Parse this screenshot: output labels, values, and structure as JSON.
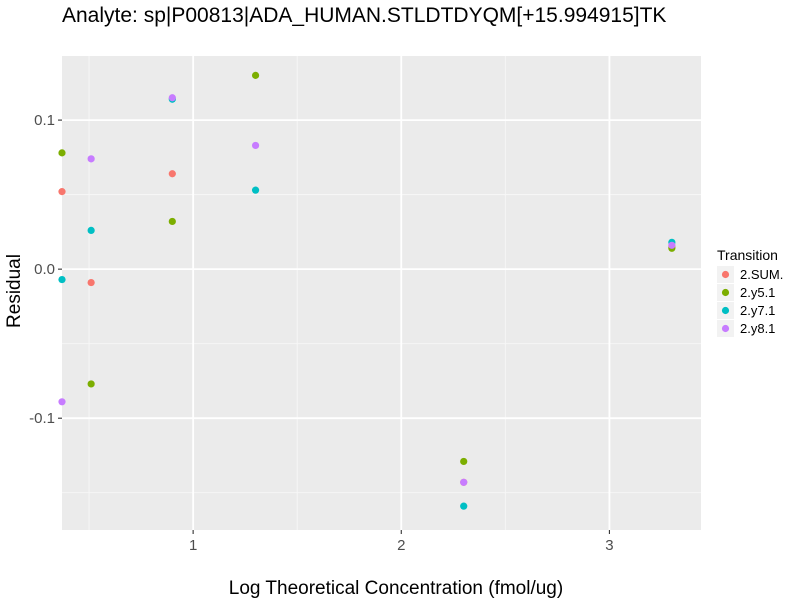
{
  "chart_data": {
    "type": "scatter",
    "title": "Analyte: sp|P00813|ADA_HUMAN.STLDTDYQM[+15.994915]TK",
    "xlabel": "Log Theoretical Concentration (fmol/ug)",
    "ylabel": "Residual",
    "xlim": [
      0.37,
      3.44
    ],
    "ylim": [
      -0.175,
      0.143
    ],
    "x_ticks": [
      1,
      2,
      3
    ],
    "x_tick_labels": [
      "1",
      "2",
      "3"
    ],
    "x_minor_ticks": [
      0.5,
      1.5,
      2.5
    ],
    "y_ticks": [
      -0.1,
      0.0,
      0.1
    ],
    "y_tick_labels": [
      "-0.1",
      "0.0",
      "0.1"
    ],
    "y_minor_ticks": [
      -0.15,
      -0.05,
      0.05
    ],
    "grid": true,
    "legend": {
      "title": "Transition",
      "position": "right"
    },
    "series": [
      {
        "name": "2.SUM.",
        "color": "#F8766D",
        "points": [
          [
            0.37,
            0.052
          ],
          [
            0.51,
            -0.009
          ],
          [
            0.9,
            0.064
          ],
          [
            2.3,
            -0.143
          ],
          [
            3.3,
            0.015
          ]
        ]
      },
      {
        "name": "2.y5.1",
        "color": "#7CAE00",
        "points": [
          [
            0.37,
            0.078
          ],
          [
            0.51,
            -0.077
          ],
          [
            0.9,
            0.032
          ],
          [
            1.3,
            0.13
          ],
          [
            2.3,
            -0.129
          ],
          [
            3.3,
            0.014
          ]
        ]
      },
      {
        "name": "2.y7.1",
        "color": "#00BFC4",
        "points": [
          [
            0.37,
            -0.007
          ],
          [
            0.51,
            0.026
          ],
          [
            0.9,
            0.114
          ],
          [
            1.3,
            0.053
          ],
          [
            2.3,
            -0.159
          ],
          [
            3.3,
            0.018
          ]
        ]
      },
      {
        "name": "2.y8.1",
        "color": "#C77CFF",
        "points": [
          [
            0.37,
            -0.089
          ],
          [
            0.51,
            0.074
          ],
          [
            0.9,
            0.115
          ],
          [
            1.3,
            0.083
          ],
          [
            2.3,
            -0.143
          ],
          [
            3.3,
            0.016
          ]
        ]
      }
    ]
  }
}
